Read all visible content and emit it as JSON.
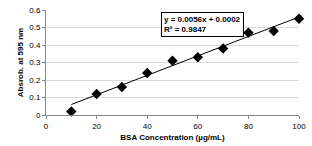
{
  "chart_data": {
    "type": "scatter",
    "x_label": "BSA Concentration (µg/mL)",
    "y_label": "Absrob. at 595 nm",
    "annotations": [
      "y = 0.0056x + 0.0002",
      "R² = 0.9847"
    ],
    "series": [
      {
        "type": "scatter",
        "marker": "diamond",
        "color": "#000000",
        "x": [
          10,
          20,
          30,
          40,
          50,
          60,
          70,
          80,
          90,
          100
        ],
        "values": [
          0.02,
          0.12,
          0.16,
          0.24,
          0.31,
          0.33,
          0.38,
          0.47,
          0.48,
          0.55
        ]
      },
      {
        "type": "line",
        "line_style": "solid",
        "color": "#000000",
        "x": [
          10,
          100
        ],
        "values": [
          0.06,
          0.56
        ]
      }
    ],
    "xlim": [
      0,
      100
    ],
    "xticks": [
      0,
      20,
      40,
      60,
      80,
      100
    ],
    "ylim": [
      0,
      0.6
    ],
    "yticks": [
      0,
      0.1,
      0.2,
      0.3,
      0.4,
      0.5,
      0.6
    ],
    "grid": true
  }
}
